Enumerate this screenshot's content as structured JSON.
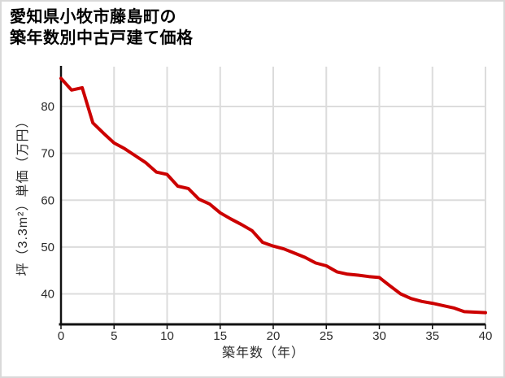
{
  "title": {
    "line1": "愛知県小牧市藤島町の",
    "line2": "築年数別中古戸建て価格"
  },
  "chart_data": {
    "type": "line",
    "title": "愛知県小牧市藤島町の築年数別中古戸建て価格",
    "xlabel": "築年数（年）",
    "ylabel": "坪（3.3m²）単価（万円）",
    "x": [
      0,
      1,
      2,
      3,
      4,
      5,
      6,
      7,
      8,
      9,
      10,
      11,
      12,
      13,
      14,
      15,
      16,
      17,
      18,
      19,
      20,
      21,
      22,
      23,
      24,
      25,
      26,
      27,
      28,
      29,
      30,
      31,
      32,
      33,
      34,
      35,
      36,
      37,
      38,
      39,
      40
    ],
    "values": [
      86,
      83.5,
      84,
      76.5,
      74.3,
      72.2,
      71,
      69.5,
      68,
      66,
      65.5,
      63,
      62.5,
      60.2,
      59.2,
      57.3,
      56,
      54.8,
      53.5,
      51,
      50.2,
      49.6,
      48.7,
      47.8,
      46.6,
      46,
      44.7,
      44.2,
      44,
      43.7,
      43.5,
      41.7,
      40,
      39,
      38.4,
      38,
      37.5,
      37,
      36.2,
      36.1,
      36
    ],
    "xlim": [
      0,
      40
    ],
    "ylim": [
      33.5,
      88.5
    ],
    "x_ticks": [
      0,
      5,
      10,
      15,
      20,
      25,
      30,
      35,
      40
    ],
    "y_ticks": [
      40,
      50,
      60,
      70,
      80
    ],
    "grid": true,
    "legend": false,
    "line_color": "#cc0000",
    "grid_color": "#dcdcdc",
    "axis_color": "#111111",
    "tick_text_color": "#2b2b2b"
  }
}
